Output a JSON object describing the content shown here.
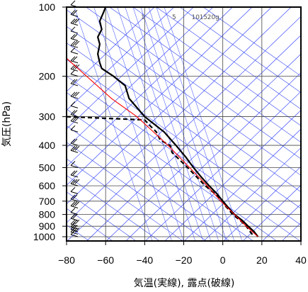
{
  "chart_data": {
    "type": "line",
    "title": "",
    "xlabel": "気温(実線), 露点(破線)",
    "ylabel": "気圧(hPa)",
    "xlim": [
      -80,
      40
    ],
    "ylim": [
      1050,
      100
    ],
    "y_scale": "log",
    "grid": true,
    "x_ticks": [
      -80,
      -60,
      -40,
      -20,
      0,
      20,
      40
    ],
    "x_tick_labels": [
      "−80",
      "−60",
      "−40",
      "−20",
      "0",
      "20",
      "40"
    ],
    "y_ticks": [
      100,
      200,
      300,
      400,
      500,
      600,
      700,
      800,
      900,
      1000
    ],
    "y_tick_labels": [
      "100",
      "200",
      "300",
      "400",
      "500",
      "600",
      "700",
      "800",
      "900",
      "1000"
    ],
    "mixing_ratio_labels": [
      "1",
      "5",
      "10",
      "15",
      "20g"
    ],
    "series": [
      {
        "role": "temperature",
        "style": "solid",
        "color": "#000000",
        "points": [
          {
            "p": 100,
            "t": -60
          },
          {
            "p": 105,
            "t": -61
          },
          {
            "p": 115,
            "t": -63
          },
          {
            "p": 125,
            "t": -62
          },
          {
            "p": 135,
            "t": -64
          },
          {
            "p": 145,
            "t": -63
          },
          {
            "p": 160,
            "t": -64
          },
          {
            "p": 175,
            "t": -63
          },
          {
            "p": 185,
            "t": -62
          },
          {
            "p": 200,
            "t": -56
          },
          {
            "p": 220,
            "t": -50
          },
          {
            "p": 250,
            "t": -48
          },
          {
            "p": 300,
            "t": -40
          },
          {
            "p": 350,
            "t": -30
          },
          {
            "p": 400,
            "t": -24
          },
          {
            "p": 450,
            "t": -19
          },
          {
            "p": 500,
            "t": -15
          },
          {
            "p": 550,
            "t": -11
          },
          {
            "p": 600,
            "t": -7
          },
          {
            "p": 650,
            "t": -3
          },
          {
            "p": 700,
            "t": 0
          },
          {
            "p": 750,
            "t": 3
          },
          {
            "p": 800,
            "t": 6
          },
          {
            "p": 850,
            "t": 10
          },
          {
            "p": 900,
            "t": 13
          },
          {
            "p": 950,
            "t": 16
          },
          {
            "p": 1000,
            "t": 18
          }
        ]
      },
      {
        "role": "dewpoint",
        "style": "dashed",
        "color": "#000000",
        "points": [
          {
            "p": 300,
            "t": -80
          },
          {
            "p": 305,
            "t": -60
          },
          {
            "p": 310,
            "t": -40
          },
          {
            "p": 330,
            "t": -37
          },
          {
            "p": 350,
            "t": -34
          },
          {
            "p": 380,
            "t": -32
          },
          {
            "p": 400,
            "t": -27
          },
          {
            "p": 430,
            "t": -26
          },
          {
            "p": 500,
            "t": -18
          },
          {
            "p": 600,
            "t": -9
          },
          {
            "p": 650,
            "t": -4
          },
          {
            "p": 700,
            "t": 0
          },
          {
            "p": 730,
            "t": 1
          },
          {
            "p": 760,
            "t": 3
          },
          {
            "p": 800,
            "t": 5
          },
          {
            "p": 850,
            "t": 9
          },
          {
            "p": 900,
            "t": 12
          },
          {
            "p": 950,
            "t": 14
          },
          {
            "p": 1000,
            "t": 16
          }
        ]
      },
      {
        "role": "parcel-path",
        "style": "solid",
        "color": "#ff0000",
        "points": [
          {
            "p": 167,
            "t": -80
          },
          {
            "p": 250,
            "t": -57
          },
          {
            "p": 300,
            "t": -44
          },
          {
            "p": 400,
            "t": -28
          },
          {
            "p": 500,
            "t": -17
          },
          {
            "p": 600,
            "t": -8
          },
          {
            "p": 700,
            "t": -1
          },
          {
            "p": 800,
            "t": 6
          },
          {
            "p": 900,
            "t": 12
          },
          {
            "p": 1000,
            "t": 18
          }
        ]
      }
    ],
    "wind_barbs_pressures": [
      100,
      110,
      120,
      130,
      140,
      150,
      160,
      175,
      190,
      200,
      220,
      250,
      275,
      300,
      320,
      350,
      400,
      430,
      500,
      550,
      600,
      650,
      700,
      750,
      800,
      850,
      900,
      925,
      950,
      975,
      1000
    ],
    "colors": {
      "isotherm": "#2233ff",
      "adiabat": "#3344ee",
      "mixing_ratio": "#5566ff",
      "grid": "#444444",
      "frame": "#000000"
    }
  }
}
